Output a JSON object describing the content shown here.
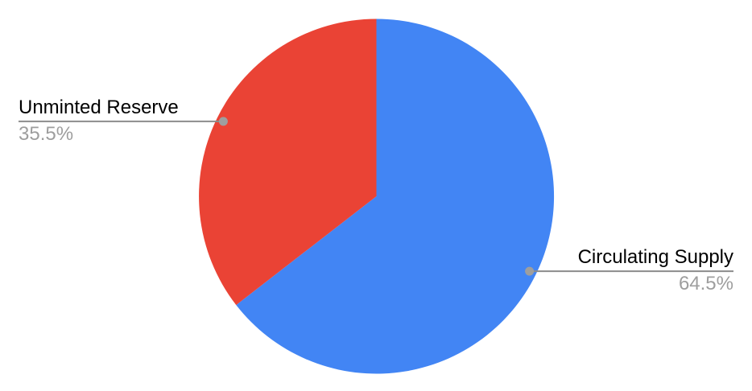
{
  "chart_data": {
    "type": "pie",
    "title": "",
    "legend_position": "none",
    "labels_style": "outside-callout-with-leader-lines",
    "start_angle_deg": 0,
    "direction": "clockwise",
    "background_color": "#FFFFFF",
    "label_color": "#000000",
    "percent_color": "#9E9E9E",
    "leader_line_color": "#8C8C8C",
    "dot_color": "#9E9E9E",
    "slices": [
      {
        "label": "Circulating Supply",
        "value": 64.5,
        "percent_label": "64.5%",
        "color": "#4285F4",
        "callout_side": "right"
      },
      {
        "label": "Unminted Reserve",
        "value": 35.5,
        "percent_label": "35.5%",
        "color": "#EA4335",
        "callout_side": "left"
      }
    ]
  }
}
